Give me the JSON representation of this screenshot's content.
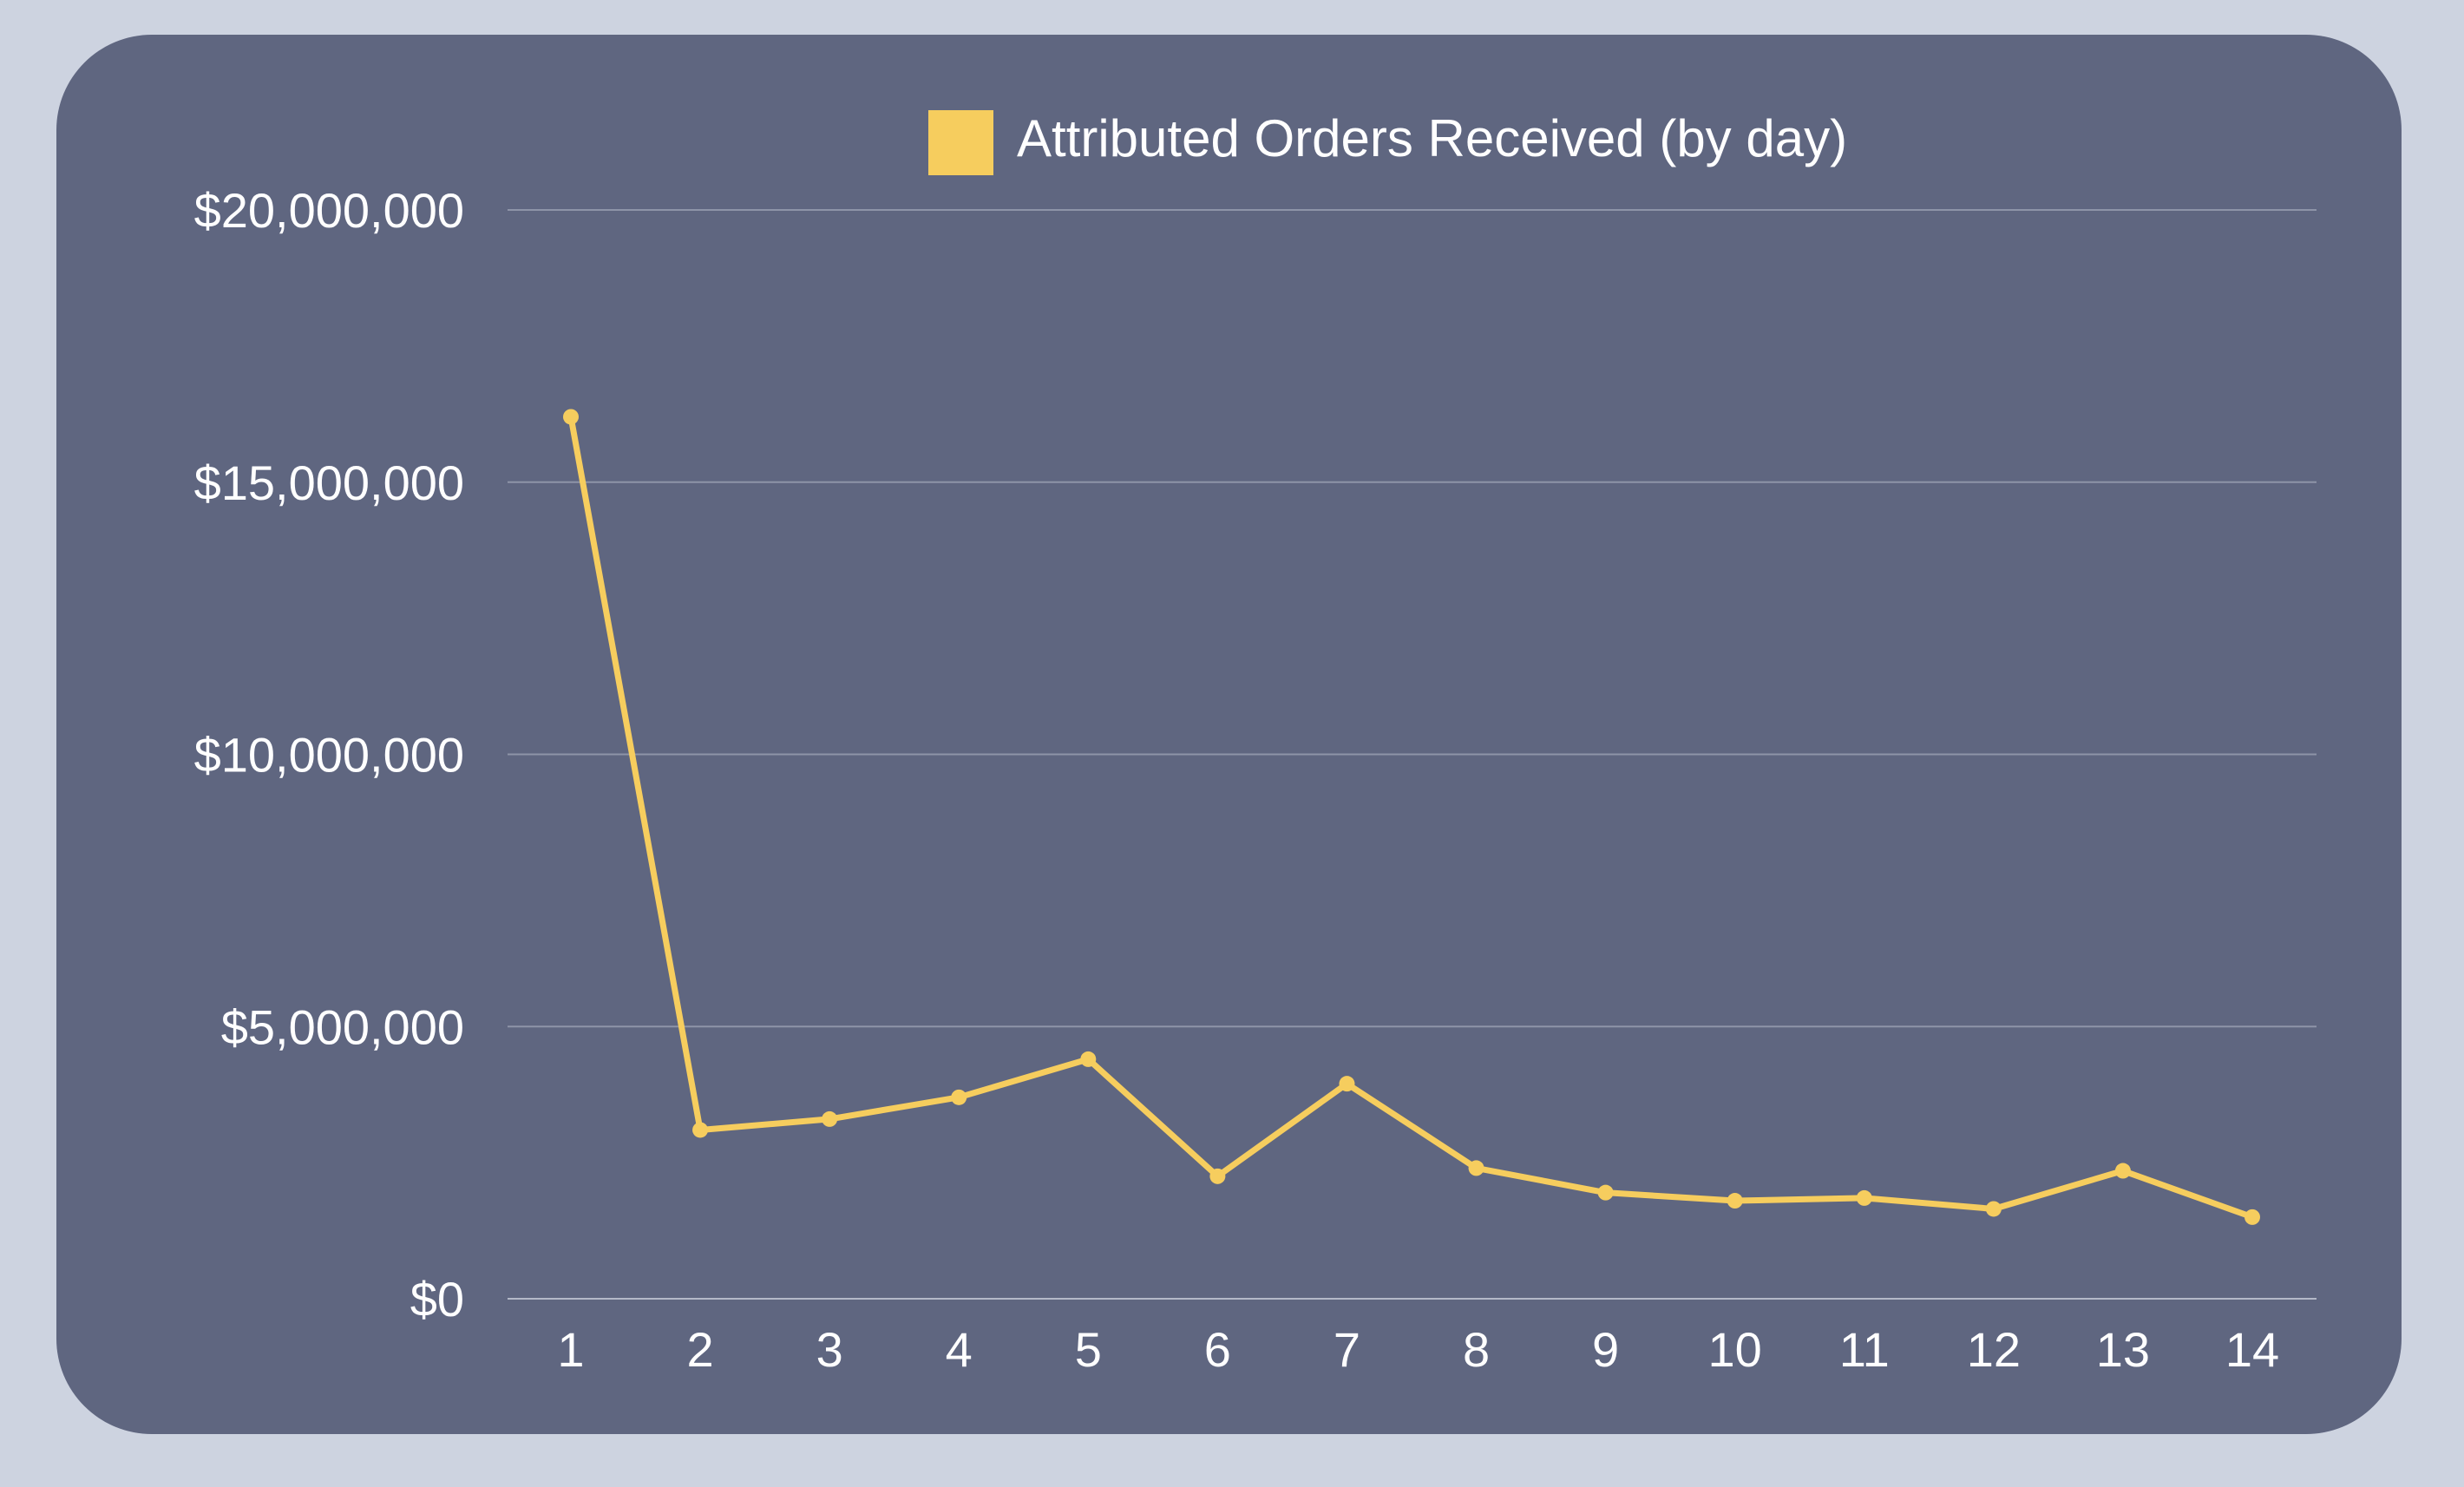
{
  "colors": {
    "page_background": "#cdd3e0",
    "card_background": "#5f6680",
    "series": "#f6cd5e",
    "text": "#ffffff",
    "grid": "#8e94a8"
  },
  "chart_data": {
    "type": "line",
    "title": "",
    "xlabel": "",
    "ylabel": "",
    "legend": {
      "position": "top-center",
      "entries": [
        "Attributed Orders Received (by day)"
      ]
    },
    "grid": true,
    "categories": [
      "1",
      "2",
      "3",
      "4",
      "5",
      "6",
      "7",
      "8",
      "9",
      "10",
      "11",
      "12",
      "13",
      "14"
    ],
    "ylim": [
      0,
      20000000
    ],
    "yticks": [
      0,
      5000000,
      10000000,
      15000000,
      20000000
    ],
    "ytick_labels": [
      "$0",
      "$5,000,000",
      "$10,000,000",
      "$15,000,000",
      "$20,000,000"
    ],
    "series": [
      {
        "name": "Attributed Orders Received (by day)",
        "color": "#f6cd5e",
        "values": [
          16200000,
          3100000,
          3300000,
          3700000,
          4400000,
          2250000,
          3950000,
          2400000,
          1950000,
          1800000,
          1850000,
          1650000,
          2350000,
          1500000
        ]
      }
    ]
  }
}
